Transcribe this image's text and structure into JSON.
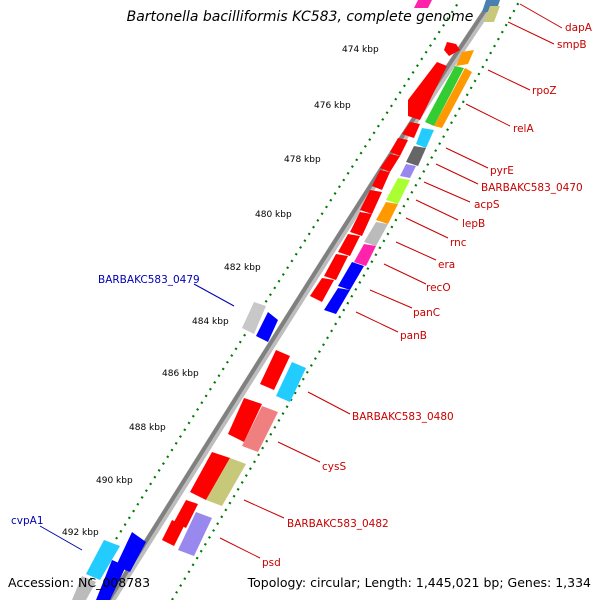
{
  "title": "Bartonella bacilliformis KC583, complete genome",
  "accession": "Accession: NC_008783",
  "topology": "Topology: circular; Length: 1,445,021 bp; Genes: 1,334",
  "colors": {
    "backbone": "#808080",
    "tick": "#007a00",
    "forward_label": "#0000b4",
    "reverse_label": "#c80000"
  },
  "ticks": [
    "474 kbp",
    "476 kbp",
    "478 kbp",
    "480 kbp",
    "482 kbp",
    "484 kbp",
    "486 kbp",
    "488 kbp",
    "490 kbp",
    "492 kbp"
  ],
  "forward_labels": [
    "BARBAKC583_0479",
    "cvpA1"
  ],
  "reverse_labels": [
    "dapA",
    "smpB",
    "rpoZ",
    "relA",
    "pyrE",
    "BARBAKC583_0470",
    "acpS",
    "lepB",
    "rnc",
    "era",
    "recO",
    "panC",
    "panB",
    "BARBAKC583_0480",
    "cysS",
    "BARBAKC583_0482",
    "psd"
  ]
}
